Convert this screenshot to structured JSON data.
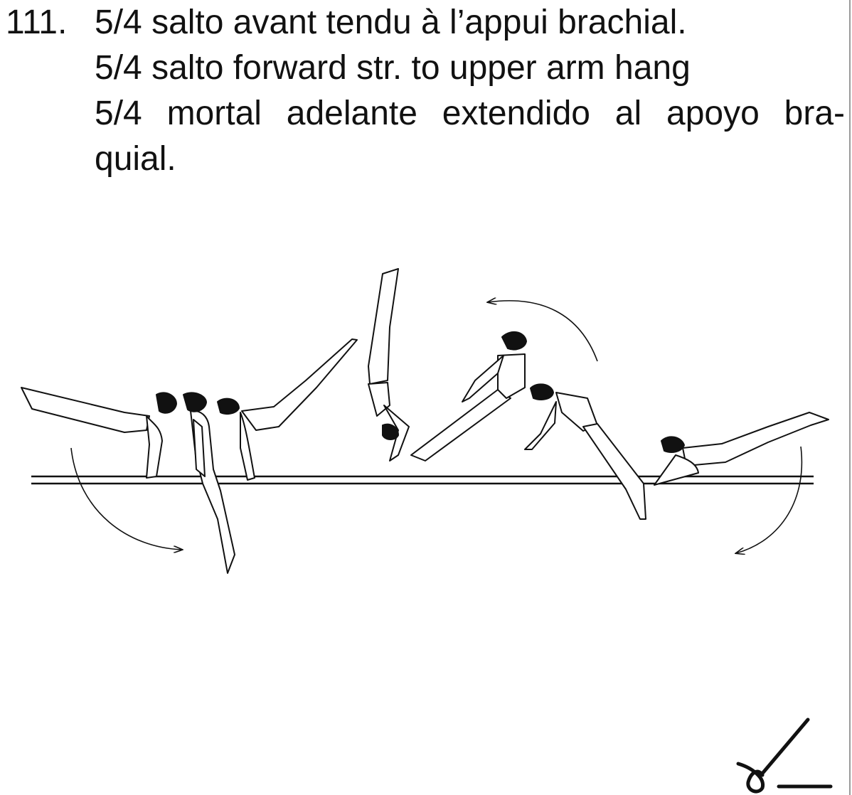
{
  "element": {
    "number": "111.",
    "lines": [
      "5/4 salto avant tendu à l’appui brachial.",
      "5/4 salto forward str. to upper arm hang",
      "5/4 mortal adelante extendido al apoyo bra-",
      "quial."
    ]
  },
  "figure": {
    "subject": "gymnast on parallel bars performing a 5/4 forward salto stretched to upper arm hang",
    "stroke_color": "#111111",
    "fill_color": "#ffffff"
  },
  "difficulty_symbol": {
    "icon": "difficulty-symbol-icon"
  }
}
